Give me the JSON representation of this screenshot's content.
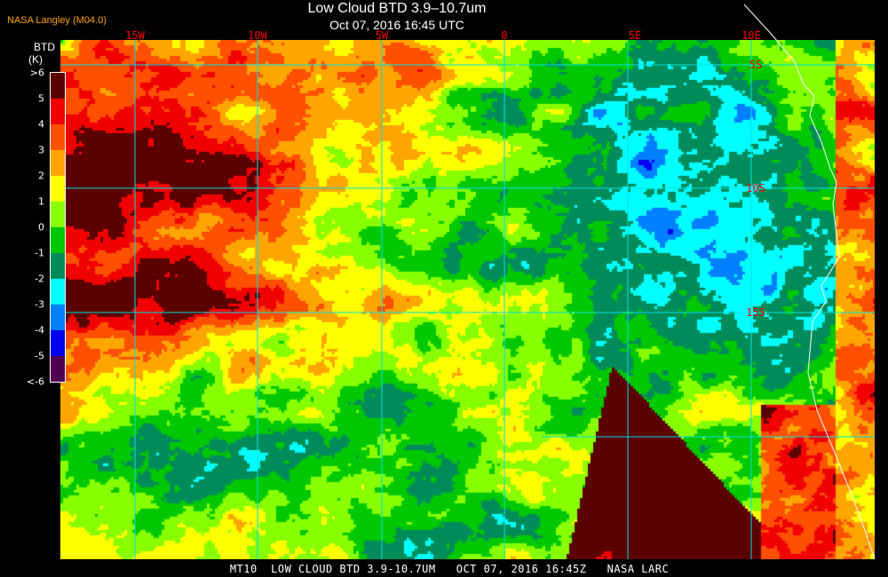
{
  "header": {
    "title": "Low Cloud BTD 3.9–10.7um",
    "datetime": "Oct 07, 2016 16:45 UTC",
    "credit": "NASA Langley (M04.0)"
  },
  "legend": {
    "title": "BTD",
    "unit": "(K)",
    "ticks": [
      ">6",
      "5",
      "4",
      "3",
      "2",
      "1",
      "0",
      "-1",
      "-2",
      "-3",
      "-4",
      "-5",
      "<-6"
    ],
    "colors": [
      "#5a0000",
      "#f00000",
      "#ff5000",
      "#ffa500",
      "#ffff00",
      "#88ff00",
      "#00c800",
      "#008c5a",
      "#00ffff",
      "#0080ff",
      "#0000f0",
      "#500050"
    ]
  },
  "map": {
    "lon_labels": [
      "15W",
      "10W",
      "5W",
      "0",
      "5E",
      "10E"
    ],
    "lat_labels": [
      "5S",
      "10S",
      "15S"
    ],
    "grid_color": "#00e0e0",
    "coastline_color": "#ffffff"
  },
  "footer": {
    "caption": "MT10  LOW CLOUD BTD 3.9-10.7UM   OCT 07, 2016 16:45Z   NASA LARC"
  }
}
